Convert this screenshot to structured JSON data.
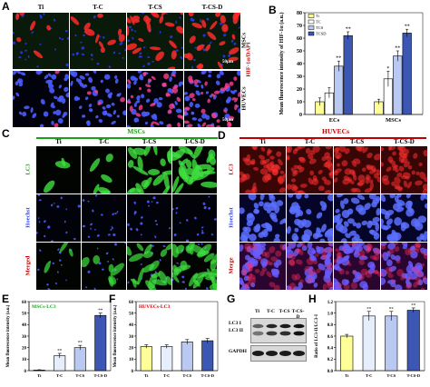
{
  "panelA": {
    "letter": "A",
    "columns": [
      "Ti",
      "T-C",
      "T-CS",
      "T-CS-D"
    ],
    "rows": [
      "MSCs",
      "HUVECs"
    ],
    "side_label_stain": "HIF-1α/DAPI",
    "scale_bar": "50μm"
  },
  "panelB": {
    "letter": "B"
  },
  "panelC": {
    "letter": "C",
    "group_title": "MSCs",
    "columns": [
      "Ti",
      "T-C",
      "T-CS",
      "T-CS-D"
    ],
    "rows": [
      "LC3",
      "Hoechst",
      "Merged"
    ]
  },
  "panelD": {
    "letter": "D",
    "group_title": "HUVECs",
    "columns": [
      "Ti",
      "T-C",
      "T-CS",
      "T-CS-D"
    ],
    "rows": [
      "LC3",
      "Hoechst",
      "Merge"
    ]
  },
  "panelE": {
    "letter": "E"
  },
  "panelF": {
    "letter": "F"
  },
  "panelG": {
    "letter": "G",
    "columns": [
      "Ti",
      "T-C",
      "T-CS",
      "T-CS-D"
    ],
    "bands": [
      "LC3 I",
      "LC3 II",
      "GAPDH"
    ]
  },
  "panelH": {
    "letter": "H"
  },
  "chart_data": [
    {
      "id": "B",
      "type": "bar",
      "ylabel": "Mean fluorescence intensity of HIF-1α (a.u.)",
      "categories": [
        "ECs",
        "MSCs"
      ],
      "series": [
        {
          "name": "Ti",
          "color": "#ffff99",
          "values": [
            10,
            10
          ],
          "errors": [
            3,
            2
          ]
        },
        {
          "name": "TC",
          "color": "#ffffff",
          "values": [
            17,
            28
          ],
          "errors": [
            4,
            6
          ]
        },
        {
          "name": "TCS",
          "color": "#b9c9f2",
          "values": [
            38,
            46
          ],
          "errors": [
            4,
            4
          ]
        },
        {
          "name": "TCSD",
          "color": "#3b56b3",
          "values": [
            62,
            64
          ],
          "errors": [
            3,
            3
          ]
        }
      ],
      "yticks": [
        0,
        10,
        20,
        30,
        40,
        50,
        60,
        70,
        80
      ],
      "ylim": [
        0,
        80
      ],
      "stars": [
        [
          "",
          "",
          "**",
          "**"
        ],
        [
          "",
          "*",
          "**",
          "**"
        ]
      ],
      "legend": "top-left"
    },
    {
      "id": "E",
      "type": "bar",
      "title": "MSCs-LC3",
      "ylabel": "Mean fluorescence intensity (a.u.)",
      "categories": [
        "Ti",
        "T-C",
        "T-CS",
        "T-CS-D"
      ],
      "colors": [
        "#ffff99",
        "#e6eefc",
        "#b9c9f2",
        "#3b56b3"
      ],
      "values": [
        0.5,
        13,
        20,
        48
      ],
      "errors": [
        0.3,
        2,
        2,
        2
      ],
      "yticks": [
        0,
        10,
        20,
        30,
        40,
        50,
        60
      ],
      "ylim": [
        0,
        60
      ],
      "stars": [
        "",
        "**",
        "**",
        "**"
      ]
    },
    {
      "id": "F",
      "type": "bar",
      "title": "HUVECs-LC3",
      "ylabel": "Mean fluorescence intensity (a.u.)",
      "categories": [
        "Ti",
        "T-C",
        "T-CS",
        "T-CS-D"
      ],
      "colors": [
        "#ffff99",
        "#e6eefc",
        "#b9c9f2",
        "#3b56b3"
      ],
      "values": [
        21,
        21,
        25,
        26
      ],
      "errors": [
        1.5,
        1.5,
        2,
        2
      ],
      "yticks": [
        0,
        10,
        20,
        30,
        40,
        50,
        60
      ],
      "ylim": [
        0,
        60
      ],
      "stars": [
        "",
        "",
        "",
        ""
      ]
    },
    {
      "id": "H",
      "type": "bar",
      "ylabel": "Ratio of LC3-II/LC3-I",
      "categories": [
        "Ti",
        "T-C",
        "T-CS",
        "T-CS-D"
      ],
      "colors": [
        "#ffff99",
        "#e6eefc",
        "#b9c9f2",
        "#3b56b3"
      ],
      "values": [
        0.6,
        0.95,
        0.95,
        1.05
      ],
      "errors": [
        0.03,
        0.08,
        0.08,
        0.04
      ],
      "yticks": [
        0.0,
        0.2,
        0.4,
        0.6,
        0.8,
        1.0,
        1.2
      ],
      "ylim": [
        0,
        1.2
      ],
      "stars": [
        "",
        "**",
        "**",
        "**"
      ]
    }
  ]
}
